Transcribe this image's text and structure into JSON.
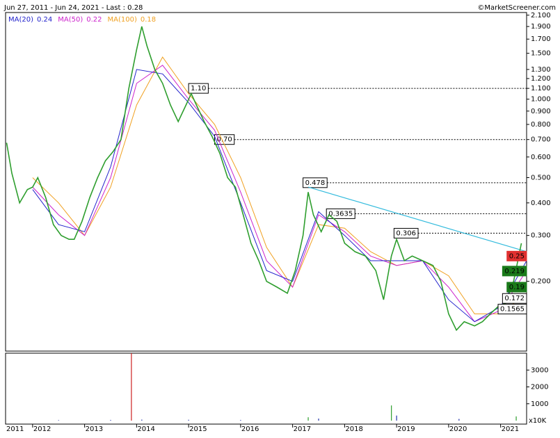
{
  "chart_data": {
    "type": "line",
    "title": "Jun 27, 2011 - Jun 24, 2021 - Last : 0.28",
    "source": "©MarketScreener.com",
    "log_scale": true,
    "ylim": [
      0.108,
      2.15
    ],
    "yticks": [
      {
        "value": 2.1,
        "label": "2.100"
      },
      {
        "value": 1.9,
        "label": "1.900"
      },
      {
        "value": 1.7,
        "label": "1.700"
      },
      {
        "value": 1.5,
        "label": "1.500"
      },
      {
        "value": 1.3,
        "label": "1.300"
      },
      {
        "value": 1.2,
        "label": "1.200"
      },
      {
        "value": 1.1,
        "label": "1.100"
      },
      {
        "value": 1.0,
        "label": "1.000"
      },
      {
        "value": 0.9,
        "label": "0.900"
      },
      {
        "value": 0.8,
        "label": "0.800"
      },
      {
        "value": 0.7,
        "label": "0.700"
      },
      {
        "value": 0.6,
        "label": "0.600"
      },
      {
        "value": 0.5,
        "label": "0.500"
      },
      {
        "value": 0.4,
        "label": "0.400"
      },
      {
        "value": 0.3,
        "label": "0.300"
      },
      {
        "value": 0.2,
        "label": "0.200"
      }
    ],
    "xlim": [
      2011.48,
      2021.5
    ],
    "xticks": [
      2011,
      2012,
      2013,
      2014,
      2015,
      2016,
      2017,
      2018,
      2019,
      2020,
      2021
    ],
    "color": "#2e9e2e",
    "x": [
      2011.5,
      2011.6,
      2011.75,
      2011.9,
      2012.0,
      2012.1,
      2012.25,
      2012.4,
      2012.55,
      2012.7,
      2012.8,
      2012.95,
      2013.1,
      2013.25,
      2013.4,
      2013.55,
      2013.7,
      2013.85,
      2014.0,
      2014.1,
      2014.2,
      2014.35,
      2014.5,
      2014.65,
      2014.8,
      2014.95,
      2015.05,
      2015.15,
      2015.3,
      2015.45,
      2015.6,
      2015.75,
      2015.9,
      2016.05,
      2016.2,
      2016.35,
      2016.5,
      2016.7,
      2016.9,
      2017.05,
      2017.2,
      2017.3,
      2017.4,
      2017.55,
      2017.7,
      2017.85,
      2018.0,
      2018.2,
      2018.4,
      2018.6,
      2018.75,
      2018.9,
      2019.0,
      2019.15,
      2019.3,
      2019.5,
      2019.7,
      2019.85,
      2020.0,
      2020.15,
      2020.3,
      2020.5,
      2020.65,
      2020.8,
      2020.95,
      2021.1,
      2021.25,
      2021.4
    ],
    "values": [
      0.68,
      0.52,
      0.4,
      0.45,
      0.46,
      0.5,
      0.42,
      0.33,
      0.3,
      0.29,
      0.29,
      0.34,
      0.42,
      0.5,
      0.58,
      0.63,
      0.7,
      1.1,
      1.55,
      1.9,
      1.6,
      1.3,
      1.15,
      0.95,
      0.82,
      0.95,
      1.05,
      0.95,
      0.82,
      0.72,
      0.62,
      0.5,
      0.46,
      0.36,
      0.28,
      0.24,
      0.2,
      0.19,
      0.18,
      0.22,
      0.3,
      0.44,
      0.36,
      0.31,
      0.36,
      0.34,
      0.28,
      0.26,
      0.25,
      0.22,
      0.17,
      0.25,
      0.29,
      0.24,
      0.25,
      0.24,
      0.23,
      0.2,
      0.15,
      0.13,
      0.14,
      0.135,
      0.14,
      0.15,
      0.16,
      0.165,
      0.2,
      0.28
    ],
    "series": [
      {
        "name": "MA(20)",
        "last": 0.24,
        "color": "#2222cc",
        "x": [
          2012.0,
          2012.5,
          2013.0,
          2013.5,
          2014.0,
          2014.5,
          2015.0,
          2015.5,
          2016.0,
          2016.5,
          2017.0,
          2017.5,
          2018.0,
          2018.5,
          2019.0,
          2019.5,
          2020.0,
          2020.5,
          2021.0,
          2021.5
        ],
        "values": [
          0.45,
          0.33,
          0.31,
          0.55,
          1.3,
          1.25,
          0.97,
          0.72,
          0.4,
          0.22,
          0.2,
          0.37,
          0.3,
          0.24,
          0.24,
          0.24,
          0.17,
          0.14,
          0.16,
          0.24
        ]
      },
      {
        "name": "MA(50)",
        "last": 0.22,
        "color": "#cc22cc",
        "x": [
          2012.0,
          2012.5,
          2013.0,
          2013.5,
          2014.0,
          2014.5,
          2015.0,
          2015.5,
          2016.0,
          2016.5,
          2017.0,
          2017.5,
          2018.0,
          2018.5,
          2019.0,
          2019.5,
          2020.0,
          2020.5,
          2021.0,
          2021.5
        ],
        "values": [
          0.46,
          0.36,
          0.3,
          0.5,
          1.15,
          1.35,
          1.0,
          0.76,
          0.44,
          0.24,
          0.19,
          0.36,
          0.31,
          0.25,
          0.23,
          0.24,
          0.19,
          0.14,
          0.155,
          0.22
        ]
      },
      {
        "name": "MA(100)",
        "last": 0.18,
        "color": "#f0a020",
        "x": [
          2012.0,
          2012.5,
          2013.0,
          2013.5,
          2014.0,
          2014.5,
          2015.0,
          2015.5,
          2016.0,
          2016.5,
          2017.0,
          2017.5,
          2018.0,
          2018.5,
          2019.0,
          2019.5,
          2020.0,
          2020.5,
          2021.0,
          2021.5
        ],
        "values": [
          0.5,
          0.4,
          0.3,
          0.46,
          0.95,
          1.45,
          1.05,
          0.8,
          0.5,
          0.27,
          0.19,
          0.33,
          0.32,
          0.26,
          0.23,
          0.24,
          0.21,
          0.15,
          0.15,
          0.18
        ]
      }
    ],
    "levels": [
      {
        "value": 1.1,
        "label": "1.10",
        "x": 2015.0
      },
      {
        "value": 0.7,
        "label": "0.70",
        "x": 2015.5
      },
      {
        "value": 0.478,
        "x": 2017.2
      },
      {
        "value": 0.3635,
        "x": 2017.65
      },
      {
        "value": 0.306,
        "x": 2018.95
      }
    ],
    "trendline": {
      "x": [
        2017.3,
        2021.5
      ],
      "values": [
        0.46,
        0.26
      ],
      "color": "#33bbdd"
    },
    "price_labels": [
      {
        "value": 0.25,
        "color": "#e03030"
      },
      {
        "value": 0.219,
        "color": "#1a7a1a"
      },
      {
        "value": 0.19,
        "color": "#1a7a1a"
      },
      {
        "value": 0.172,
        "color": "#ffffff"
      },
      {
        "value": 0.1565,
        "color": "#ffffff"
      }
    ],
    "volume": {
      "ylim": [
        0,
        4000
      ],
      "yticks": [
        1000,
        2000,
        3000
      ],
      "unit_label": "x10K",
      "x": [
        2012.5,
        2013.5,
        2013.9,
        2014.1,
        2015.0,
        2016.0,
        2017.3,
        2017.5,
        2018.9,
        2019.0,
        2020.2,
        2021.3
      ],
      "values": [
        30,
        40,
        4000,
        60,
        50,
        40,
        200,
        120,
        900,
        300,
        100,
        250
      ],
      "colors": [
        "#2233aa",
        "#2233aa",
        "#cc2222",
        "#2233aa",
        "#2233aa",
        "#2233aa",
        "#2e9e2e",
        "#2233aa",
        "#2e9e2e",
        "#2233aa",
        "#2233aa",
        "#2e9e2e"
      ]
    }
  }
}
